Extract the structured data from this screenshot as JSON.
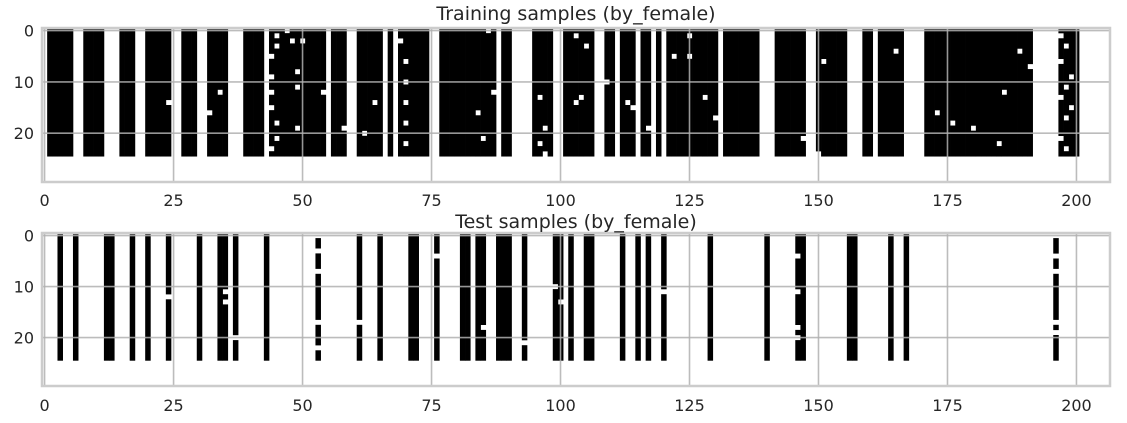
{
  "chart_data": [
    {
      "type": "heatmap",
      "title": "Training samples (by_female)",
      "x_ticks": [
        0,
        25,
        50,
        75,
        100,
        125,
        150,
        175,
        200
      ],
      "y_ticks": [
        0,
        10,
        20
      ],
      "xlim": [
        -0.5,
        206.5
      ],
      "ylim": [
        29.5,
        -0.5
      ],
      "colormap": "binary",
      "grid": true,
      "n_rows": 25,
      "n_cols": 207,
      "white_columns": [
        0,
        6,
        7,
        12,
        13,
        14,
        18,
        19,
        25,
        26,
        30,
        31,
        36,
        37,
        38,
        43,
        55,
        59,
        60,
        66,
        68,
        75,
        76,
        88,
        91,
        92,
        93,
        94,
        99,
        100,
        107,
        108,
        111,
        115,
        118,
        120,
        131,
        139,
        140,
        141,
        148,
        149,
        156,
        157,
        158,
        161,
        167,
        168,
        169,
        170,
        192,
        193,
        194,
        195,
        196,
        201,
        202,
        203,
        204,
        205,
        206
      ],
      "white_cells": [
        [
          13,
          0
        ],
        [
          14,
          24
        ],
        [
          14,
          25
        ],
        [
          12,
          34
        ],
        [
          15,
          31
        ],
        [
          16,
          32
        ],
        [
          1,
          45
        ],
        [
          3,
          45
        ],
        [
          5,
          44
        ],
        [
          9,
          44
        ],
        [
          12,
          44
        ],
        [
          15,
          44
        ],
        [
          18,
          45
        ],
        [
          21,
          45
        ],
        [
          23,
          44
        ],
        [
          0,
          47
        ],
        [
          2,
          48
        ],
        [
          8,
          49
        ],
        [
          19,
          49
        ],
        [
          2,
          50
        ],
        [
          11,
          49
        ],
        [
          19,
          58
        ],
        [
          24,
          60
        ],
        [
          12,
          54
        ],
        [
          20,
          62
        ],
        [
          14,
          64
        ],
        [
          2,
          69
        ],
        [
          6,
          70
        ],
        [
          10,
          70
        ],
        [
          14,
          70
        ],
        [
          18,
          70
        ],
        [
          22,
          70
        ],
        [
          3,
          76
        ],
        [
          16,
          84
        ],
        [
          21,
          85
        ],
        [
          0,
          86
        ],
        [
          12,
          87
        ],
        [
          19,
          97
        ],
        [
          13,
          96
        ],
        [
          22,
          96
        ],
        [
          24,
          97
        ],
        [
          14,
          103
        ],
        [
          1,
          103
        ],
        [
          13,
          104
        ],
        [
          3,
          105
        ],
        [
          6,
          107
        ],
        [
          10,
          109
        ],
        [
          14,
          113
        ],
        [
          15,
          114
        ],
        [
          19,
          117
        ],
        [
          22,
          118
        ],
        [
          5,
          122
        ],
        [
          1,
          125
        ],
        [
          5,
          125
        ],
        [
          13,
          128
        ],
        [
          17,
          130
        ],
        [
          0,
          140
        ],
        [
          3,
          149
        ],
        [
          6,
          151
        ],
        [
          21,
          147
        ],
        [
          24,
          150
        ],
        [
          13,
          157
        ],
        [
          2,
          161
        ],
        [
          4,
          165
        ],
        [
          8,
          168
        ],
        [
          12,
          170
        ],
        [
          16,
          173
        ],
        [
          18,
          176
        ],
        [
          19,
          180
        ],
        [
          22,
          185
        ],
        [
          12,
          186
        ],
        [
          4,
          189
        ],
        [
          7,
          191
        ],
        [
          1,
          197
        ],
        [
          3,
          198
        ],
        [
          6,
          197
        ],
        [
          9,
          199
        ],
        [
          11,
          198
        ],
        [
          13,
          197
        ],
        [
          15,
          199
        ],
        [
          17,
          198
        ],
        [
          19,
          196
        ],
        [
          21,
          197
        ],
        [
          23,
          198
        ]
      ]
    },
    {
      "type": "heatmap",
      "title": "Test samples (by_female)",
      "x_ticks": [
        0,
        25,
        50,
        75,
        100,
        125,
        150,
        175,
        200
      ],
      "y_ticks": [
        0,
        10,
        20
      ],
      "xlim": [
        -0.5,
        206.5
      ],
      "ylim": [
        29.5,
        -0.5
      ],
      "colormap": "binary",
      "grid": true,
      "n_rows": 25,
      "n_cols": 207,
      "black_columns": [
        3,
        6,
        12,
        13,
        17,
        20,
        24,
        30,
        34,
        35,
        37,
        43,
        53,
        61,
        65,
        71,
        72,
        76,
        81,
        82,
        84,
        85,
        88,
        89,
        90,
        93,
        99,
        100,
        102,
        105,
        106,
        112,
        115,
        117,
        120,
        129,
        140,
        146,
        147,
        156,
        157,
        164,
        167,
        196
      ],
      "white_cells_in_black": [
        [
          12,
          24
        ],
        [
          13,
          35
        ],
        [
          11,
          35
        ],
        [
          20,
          37
        ],
        [
          0,
          53
        ],
        [
          3,
          53
        ],
        [
          7,
          53
        ],
        [
          17,
          53
        ],
        [
          22,
          53
        ],
        [
          17,
          61
        ],
        [
          4,
          76
        ],
        [
          18,
          85
        ],
        [
          21,
          93
        ],
        [
          10,
          99
        ],
        [
          13,
          100
        ],
        [
          11,
          120
        ],
        [
          4,
          146
        ],
        [
          11,
          146
        ],
        [
          18,
          146
        ],
        [
          20,
          146
        ],
        [
          0,
          196
        ],
        [
          4,
          196
        ],
        [
          7,
          196
        ],
        [
          17,
          196
        ],
        [
          19,
          196
        ]
      ]
    }
  ]
}
